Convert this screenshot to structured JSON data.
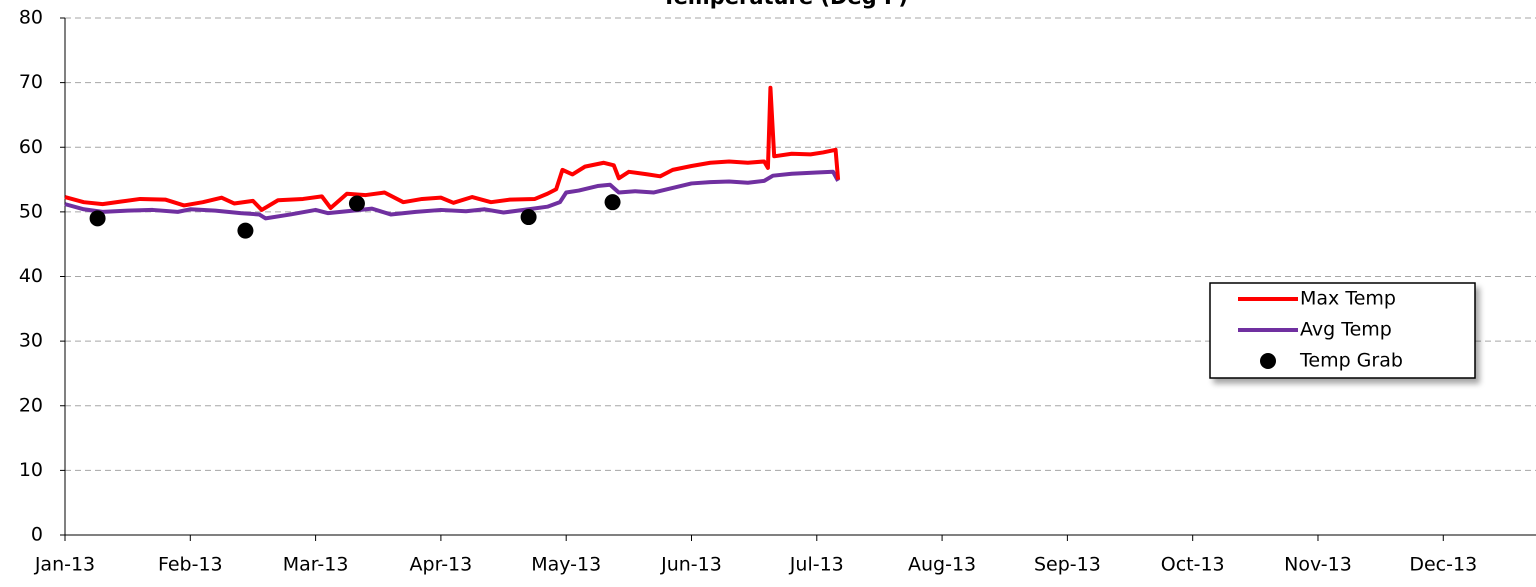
{
  "chart_data": {
    "type": "line",
    "title": "Temperature (Deg F)",
    "xlim": [
      0,
      11.74
    ],
    "xticks": [
      {
        "value": 0,
        "label": "Jan-13"
      },
      {
        "value": 1,
        "label": "Feb-13"
      },
      {
        "value": 2,
        "label": "Mar-13"
      },
      {
        "value": 3,
        "label": "Apr-13"
      },
      {
        "value": 4,
        "label": "May-13"
      },
      {
        "value": 5,
        "label": "Jun-13"
      },
      {
        "value": 6,
        "label": "Jul-13"
      },
      {
        "value": 7,
        "label": "Aug-13"
      },
      {
        "value": 8,
        "label": "Sep-13"
      },
      {
        "value": 9,
        "label": "Oct-13"
      },
      {
        "value": 10,
        "label": "Nov-13"
      },
      {
        "value": 11,
        "label": "Dec-13"
      }
    ],
    "ylim": [
      0,
      80
    ],
    "yticks": [
      0,
      10,
      20,
      30,
      40,
      50,
      60,
      70,
      80
    ],
    "grid": true,
    "legend": "right",
    "series": [
      {
        "name": "Max Temp",
        "type": "line",
        "color": "#ff0000",
        "x": [
          0,
          0.15,
          0.3,
          0.45,
          0.6,
          0.8,
          0.95,
          1.1,
          1.25,
          1.35,
          1.5,
          1.57,
          1.7,
          1.9,
          2.05,
          2.12,
          2.25,
          2.4,
          2.55,
          2.7,
          2.85,
          3.0,
          3.1,
          3.25,
          3.4,
          3.55,
          3.75,
          3.85,
          3.92,
          3.97,
          4.05,
          4.15,
          4.3,
          4.38,
          4.42,
          4.5,
          4.65,
          4.75,
          4.85,
          5.0,
          5.15,
          5.3,
          5.45,
          5.58,
          5.61,
          5.63,
          5.66,
          5.8,
          5.95,
          6.05,
          6.15,
          6.17
        ],
        "values": [
          52.3,
          51.5,
          51.2,
          51.6,
          52.0,
          51.9,
          51.0,
          51.5,
          52.2,
          51.3,
          51.7,
          50.3,
          51.8,
          52.0,
          52.4,
          50.6,
          52.8,
          52.6,
          53.0,
          51.5,
          52.0,
          52.2,
          51.4,
          52.3,
          51.5,
          51.9,
          52.0,
          52.8,
          53.5,
          56.5,
          55.8,
          57.0,
          57.6,
          57.2,
          55.2,
          56.2,
          55.8,
          55.5,
          56.5,
          57.1,
          57.6,
          57.8,
          57.6,
          57.8,
          56.8,
          69.2,
          58.6,
          59.0,
          58.9,
          59.2,
          59.6,
          55.0
        ]
      },
      {
        "name": "Avg Temp",
        "type": "line",
        "color": "#7030a0",
        "x": [
          0,
          0.15,
          0.3,
          0.5,
          0.7,
          0.9,
          1.0,
          1.2,
          1.4,
          1.55,
          1.6,
          1.8,
          2.0,
          2.1,
          2.3,
          2.45,
          2.6,
          2.8,
          3.0,
          3.2,
          3.35,
          3.5,
          3.7,
          3.85,
          3.95,
          4.0,
          4.1,
          4.25,
          4.35,
          4.42,
          4.55,
          4.7,
          4.85,
          5.0,
          5.15,
          5.3,
          5.45,
          5.58,
          5.65,
          5.8,
          6.0,
          6.13,
          6.17
        ],
        "values": [
          51.2,
          50.4,
          50.0,
          50.2,
          50.3,
          50.0,
          50.4,
          50.2,
          49.8,
          49.6,
          49.0,
          49.6,
          50.3,
          49.8,
          50.2,
          50.5,
          49.6,
          50.0,
          50.3,
          50.1,
          50.4,
          49.9,
          50.4,
          50.8,
          51.5,
          53.0,
          53.3,
          54.0,
          54.2,
          53.0,
          53.2,
          53.0,
          53.7,
          54.4,
          54.6,
          54.7,
          54.5,
          54.8,
          55.6,
          55.9,
          56.1,
          56.2,
          54.8
        ]
      },
      {
        "name": "Temp Grab",
        "type": "scatter",
        "color": "#000000",
        "x": [
          0.26,
          1.44,
          2.33,
          3.7,
          4.37
        ],
        "values": [
          49.0,
          47.1,
          51.3,
          49.2,
          51.5
        ]
      }
    ]
  }
}
